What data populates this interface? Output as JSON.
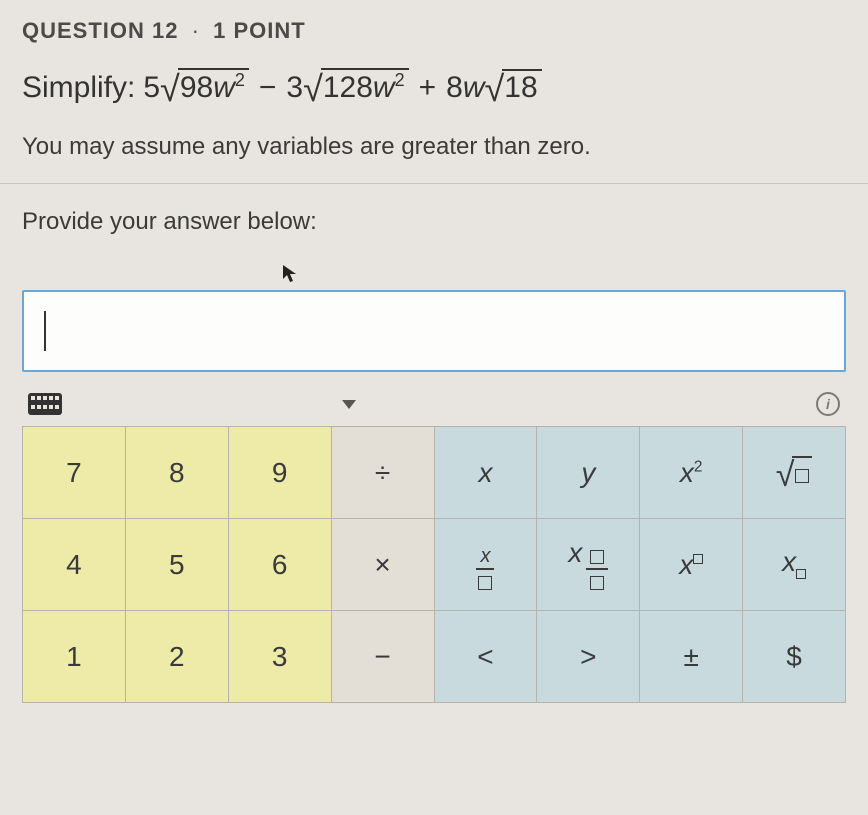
{
  "header": {
    "question_label": "QUESTION",
    "question_number": "12",
    "separator": "·",
    "points": "1 POINT"
  },
  "problem": {
    "prefix": "Simplify:",
    "term1_coef": "5",
    "term1_radicand_num": "98",
    "term1_radicand_var": "w",
    "term1_radicand_exp": "2",
    "op1": "−",
    "term2_coef": "3",
    "term2_radicand_num": "128",
    "term2_radicand_var": "w",
    "term2_radicand_exp": "2",
    "op2": "+",
    "term3_coef": "8",
    "term3_var": "w",
    "term3_radicand": "18",
    "note": "You may assume any variables are greater than zero."
  },
  "answer": {
    "prompt": "Provide your answer below:",
    "value": ""
  },
  "keypad": {
    "rows": [
      [
        {
          "label": "7",
          "cls": "num",
          "name": "key-7"
        },
        {
          "label": "8",
          "cls": "num",
          "name": "key-8"
        },
        {
          "label": "9",
          "cls": "num",
          "name": "key-9"
        },
        {
          "label": "÷",
          "cls": "op",
          "name": "key-divide"
        },
        {
          "label": "x",
          "cls": "sym",
          "name": "key-x",
          "style": "italic"
        },
        {
          "label": "y",
          "cls": "sym",
          "name": "key-y",
          "style": "italic"
        },
        {
          "label": "x2",
          "cls": "sym",
          "name": "key-x-squared",
          "render": "xsq"
        },
        {
          "label": "√▯",
          "cls": "sym",
          "name": "key-sqrt",
          "render": "sqrt"
        }
      ],
      [
        {
          "label": "4",
          "cls": "num",
          "name": "key-4"
        },
        {
          "label": "5",
          "cls": "num",
          "name": "key-5"
        },
        {
          "label": "6",
          "cls": "num",
          "name": "key-6"
        },
        {
          "label": "×",
          "cls": "op",
          "name": "key-multiply"
        },
        {
          "label": "x/▯",
          "cls": "sym",
          "name": "key-x-over",
          "render": "xfrac"
        },
        {
          "label": "x·▯/▯",
          "cls": "sym",
          "name": "key-mixed-frac",
          "render": "mixedfrac"
        },
        {
          "label": "x^▯",
          "cls": "sym",
          "name": "key-x-power",
          "render": "xpow"
        },
        {
          "label": "x_▯",
          "cls": "sym",
          "name": "key-x-sub",
          "render": "xsub"
        }
      ],
      [
        {
          "label": "1",
          "cls": "num",
          "name": "key-1"
        },
        {
          "label": "2",
          "cls": "num",
          "name": "key-2"
        },
        {
          "label": "3",
          "cls": "num",
          "name": "key-3"
        },
        {
          "label": "−",
          "cls": "op",
          "name": "key-minus"
        },
        {
          "label": "<",
          "cls": "sym",
          "name": "key-lt"
        },
        {
          "label": ">",
          "cls": "sym",
          "name": "key-gt"
        },
        {
          "label": "±",
          "cls": "sym",
          "name": "key-plusminus"
        },
        {
          "label": "$",
          "cls": "sym",
          "name": "key-dollar"
        }
      ]
    ]
  },
  "colors": {
    "num_bg": "#eeeaa8",
    "op_bg": "#e3dfd6",
    "sym_bg": "#c8dadd",
    "border": "#b7b3ac",
    "input_border": "#6aa7d6",
    "page_bg": "#e8e5e0"
  }
}
